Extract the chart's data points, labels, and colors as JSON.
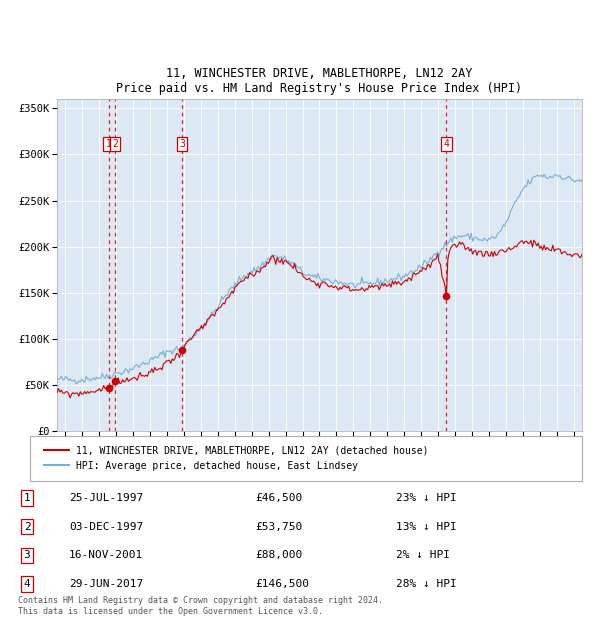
{
  "title1": "11, WINCHESTER DRIVE, MABLETHORPE, LN12 2AY",
  "title2": "Price paid vs. HM Land Registry's House Price Index (HPI)",
  "plot_bg": "#dce9f5",
  "sale_color": "#cc0000",
  "hpi_color": "#7aaed6",
  "grid_color": "#ffffff",
  "sales": [
    {
      "date_num": 1997.56,
      "price": 46500,
      "label": "1"
    },
    {
      "date_num": 1997.92,
      "price": 53750,
      "label": "2"
    },
    {
      "date_num": 2001.88,
      "price": 88000,
      "label": "3"
    },
    {
      "date_num": 2017.49,
      "price": 146500,
      "label": "4"
    }
  ],
  "legend_sale_label": "11, WINCHESTER DRIVE, MABLETHORPE, LN12 2AY (detached house)",
  "legend_hpi_label": "HPI: Average price, detached house, East Lindsey",
  "table_rows": [
    [
      "1",
      "25-JUL-1997",
      "£46,500",
      "23% ↓ HPI"
    ],
    [
      "2",
      "03-DEC-1997",
      "£53,750",
      "13% ↓ HPI"
    ],
    [
      "3",
      "16-NOV-2001",
      "£88,000",
      "2% ↓ HPI"
    ],
    [
      "4",
      "29-JUN-2017",
      "£146,500",
      "28% ↓ HPI"
    ]
  ],
  "footer": "Contains HM Land Registry data © Crown copyright and database right 2024.\nThis data is licensed under the Open Government Licence v3.0.",
  "ylim": [
    0,
    360000
  ],
  "xlim": [
    1994.5,
    2025.5
  ],
  "yticks": [
    0,
    50000,
    100000,
    150000,
    200000,
    250000,
    300000,
    350000
  ],
  "ytick_labels": [
    "£0",
    "£50K",
    "£100K",
    "£150K",
    "£200K",
    "£250K",
    "£300K",
    "£350K"
  ],
  "hpi_anchors_x": [
    1994.5,
    1995.0,
    1995.5,
    1996.0,
    1996.5,
    1997.0,
    1997.56,
    1997.92,
    1998.5,
    1999.0,
    2000.0,
    2001.0,
    2001.88,
    2002.5,
    2003.5,
    2004.5,
    2005.5,
    2006.5,
    2007.2,
    2007.8,
    2008.5,
    2009.0,
    2009.5,
    2010.0,
    2011.0,
    2012.0,
    2013.0,
    2014.0,
    2015.0,
    2016.0,
    2016.5,
    2017.0,
    2017.49,
    2018.0,
    2018.5,
    2019.0,
    2019.5,
    2020.0,
    2020.5,
    2021.0,
    2021.5,
    2022.0,
    2022.5,
    2023.0,
    2023.5,
    2024.0,
    2024.5,
    2025.0,
    2025.5
  ],
  "hpi_anchors_y": [
    56000,
    56000,
    55000,
    55500,
    57000,
    58000,
    60000,
    62000,
    65000,
    68000,
    76000,
    86000,
    90000,
    103000,
    122000,
    148000,
    168000,
    178000,
    190000,
    188000,
    180000,
    172000,
    168000,
    165000,
    162000,
    158000,
    160000,
    163000,
    168000,
    178000,
    185000,
    195000,
    203000,
    210000,
    212000,
    210000,
    208000,
    207000,
    212000,
    225000,
    245000,
    262000,
    272000,
    278000,
    275000,
    278000,
    275000,
    272000,
    272000
  ],
  "sale_anchors_x": [
    1994.5,
    1995.0,
    1995.5,
    1996.0,
    1996.5,
    1997.0,
    1997.3,
    1997.56,
    1997.92,
    1998.3,
    1998.8,
    1999.5,
    2000.0,
    2000.5,
    2001.0,
    2001.5,
    2001.88,
    2002.5,
    2003.5,
    2004.5,
    2005.5,
    2006.5,
    2007.2,
    2007.8,
    2008.5,
    2009.0,
    2009.5,
    2010.0,
    2011.0,
    2012.0,
    2013.0,
    2014.0,
    2015.0,
    2016.0,
    2016.5,
    2017.0,
    2017.49,
    2017.6,
    2018.0,
    2018.5,
    2019.0,
    2019.5,
    2020.0,
    2020.5,
    2021.0,
    2021.5,
    2022.0,
    2022.5,
    2023.0,
    2023.5,
    2024.0,
    2024.5,
    2025.0,
    2025.5
  ],
  "sale_anchors_y": [
    42000,
    41000,
    40000,
    41000,
    43000,
    44000,
    45000,
    46500,
    53750,
    54000,
    56000,
    58000,
    64000,
    68000,
    74000,
    80000,
    88000,
    102000,
    120000,
    142000,
    164000,
    175000,
    188000,
    185000,
    178000,
    168000,
    163000,
    161000,
    157000,
    153000,
    155000,
    158000,
    162000,
    174000,
    180000,
    190000,
    146500,
    195000,
    200000,
    200000,
    196000,
    193000,
    192000,
    194000,
    196000,
    200000,
    206000,
    204000,
    200000,
    197000,
    196000,
    193000,
    191000,
    191000
  ]
}
